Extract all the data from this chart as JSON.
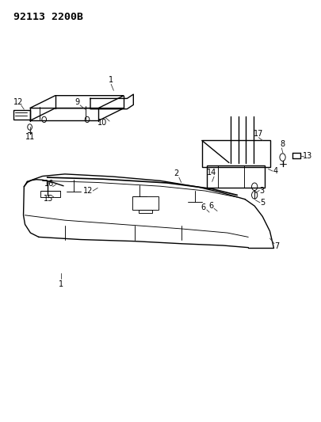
{
  "diagram_id": "92113 2200B",
  "background_color": "#ffffff",
  "line_color": "#000000",
  "fig_width": 4.05,
  "fig_height": 5.33,
  "dpi": 100,
  "title_text": "92113 2200B",
  "title_fontsize": 9.5,
  "title_fontweight": "bold"
}
